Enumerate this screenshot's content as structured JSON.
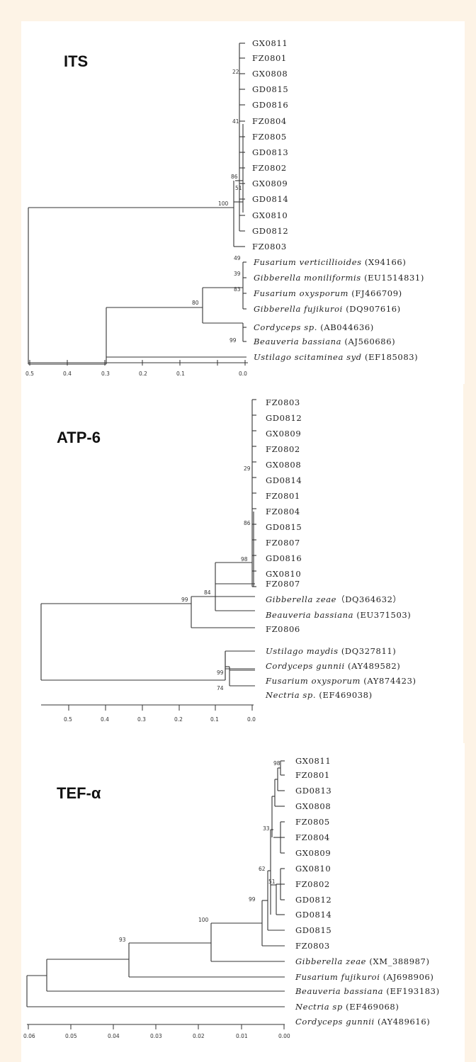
{
  "panels": {
    "its": {
      "title": "ITS",
      "taxa": [
        "GX0811",
        "FZ0801",
        "GX0808",
        "GD0815",
        "GD0816",
        "FZ0804",
        "FZ0805",
        "GD0813",
        "FZ0802",
        "GX0809",
        "GD0814",
        "GX0810",
        "GD0812",
        "FZ0803"
      ],
      "species": [
        {
          "name": "Fusarium verticillioides",
          "acc": "(X94166)"
        },
        {
          "name": "Gibberella moniliformis",
          "acc": "(EU1514831)"
        },
        {
          "name": "Fusarium oxysporum",
          "acc": "(FJ466709)"
        },
        {
          "name": "Gibberella fujikuroi",
          "acc": "(DQ907616)"
        },
        {
          "name": "Cordyceps sp.",
          "acc": "(AB044636)"
        },
        {
          "name": "Beauveria bassiana",
          "acc": "(AJ560686)"
        },
        {
          "name": "Ustilago scitaminea syd",
          "acc": "(EF185083)"
        }
      ],
      "bootstrap": [
        "22",
        "41",
        "86",
        "51",
        "100",
        "49",
        "39",
        "83",
        "80",
        "99"
      ],
      "scale": [
        "0.5",
        "0.4",
        "0.3",
        "0.2",
        "0.1",
        "0.0"
      ]
    },
    "atp": {
      "title": "ATP-6",
      "taxa": [
        "FZ0803",
        "GD0812",
        "GX0809",
        "FZ0802",
        "GX0808",
        "GD0814",
        "FZ0801",
        "FZ0804",
        "GD0815",
        "FZ0807",
        "GD0816",
        "GX0810",
        "FZ0807"
      ],
      "species": [
        {
          "name": "Gibberella zeae",
          "acc": "（DQ364632）"
        },
        {
          "name": "Beauveria bassiana",
          "acc": "(EU371503)"
        },
        {
          "name": "FZ0806",
          "acc": ""
        },
        {
          "name": "Ustilago maydis",
          "acc": "(DQ327811)"
        },
        {
          "name": "Cordyceps gunnii",
          "acc": "(AY489582)"
        },
        {
          "name": "Fusarium oxysporum",
          "acc": "(AY874423)"
        },
        {
          "name": "Nectria sp.",
          "acc": "(EF469038)"
        }
      ],
      "bootstrap": [
        "29",
        "86",
        "98",
        "84",
        "99",
        "99",
        "74"
      ],
      "scale": [
        "0.5",
        "0.4",
        "0.3",
        "0.2",
        "0.1",
        "0.0"
      ]
    },
    "tef": {
      "title": "TEF-α",
      "taxa": [
        "GX0811",
        "FZ0801",
        "GD0813",
        "GX0808",
        "FZ0805",
        "FZ0804",
        "GX0809",
        "GX0810",
        "FZ0802",
        "GD0812",
        "GD0814",
        "GD0815",
        "FZ0803"
      ],
      "species": [
        {
          "name": "Gibberella zeae",
          "acc": "(XM_388987)"
        },
        {
          "name": "Fusarium fujikuroi",
          "acc": "(AJ698906)"
        },
        {
          "name": "Beauveria bassiana",
          "acc": "(EF193183)"
        },
        {
          "name": "Nectria sp",
          "acc": "(EF469068)"
        },
        {
          "name": "Cordyceps gunnii",
          "acc": "(AY489616)"
        }
      ],
      "bootstrap": [
        "98",
        "33",
        "62",
        "51",
        "99",
        "100",
        "93"
      ],
      "scale": [
        "0.06",
        "0.05",
        "0.04",
        "0.03",
        "0.02",
        "0.01",
        "0.00"
      ]
    }
  }
}
